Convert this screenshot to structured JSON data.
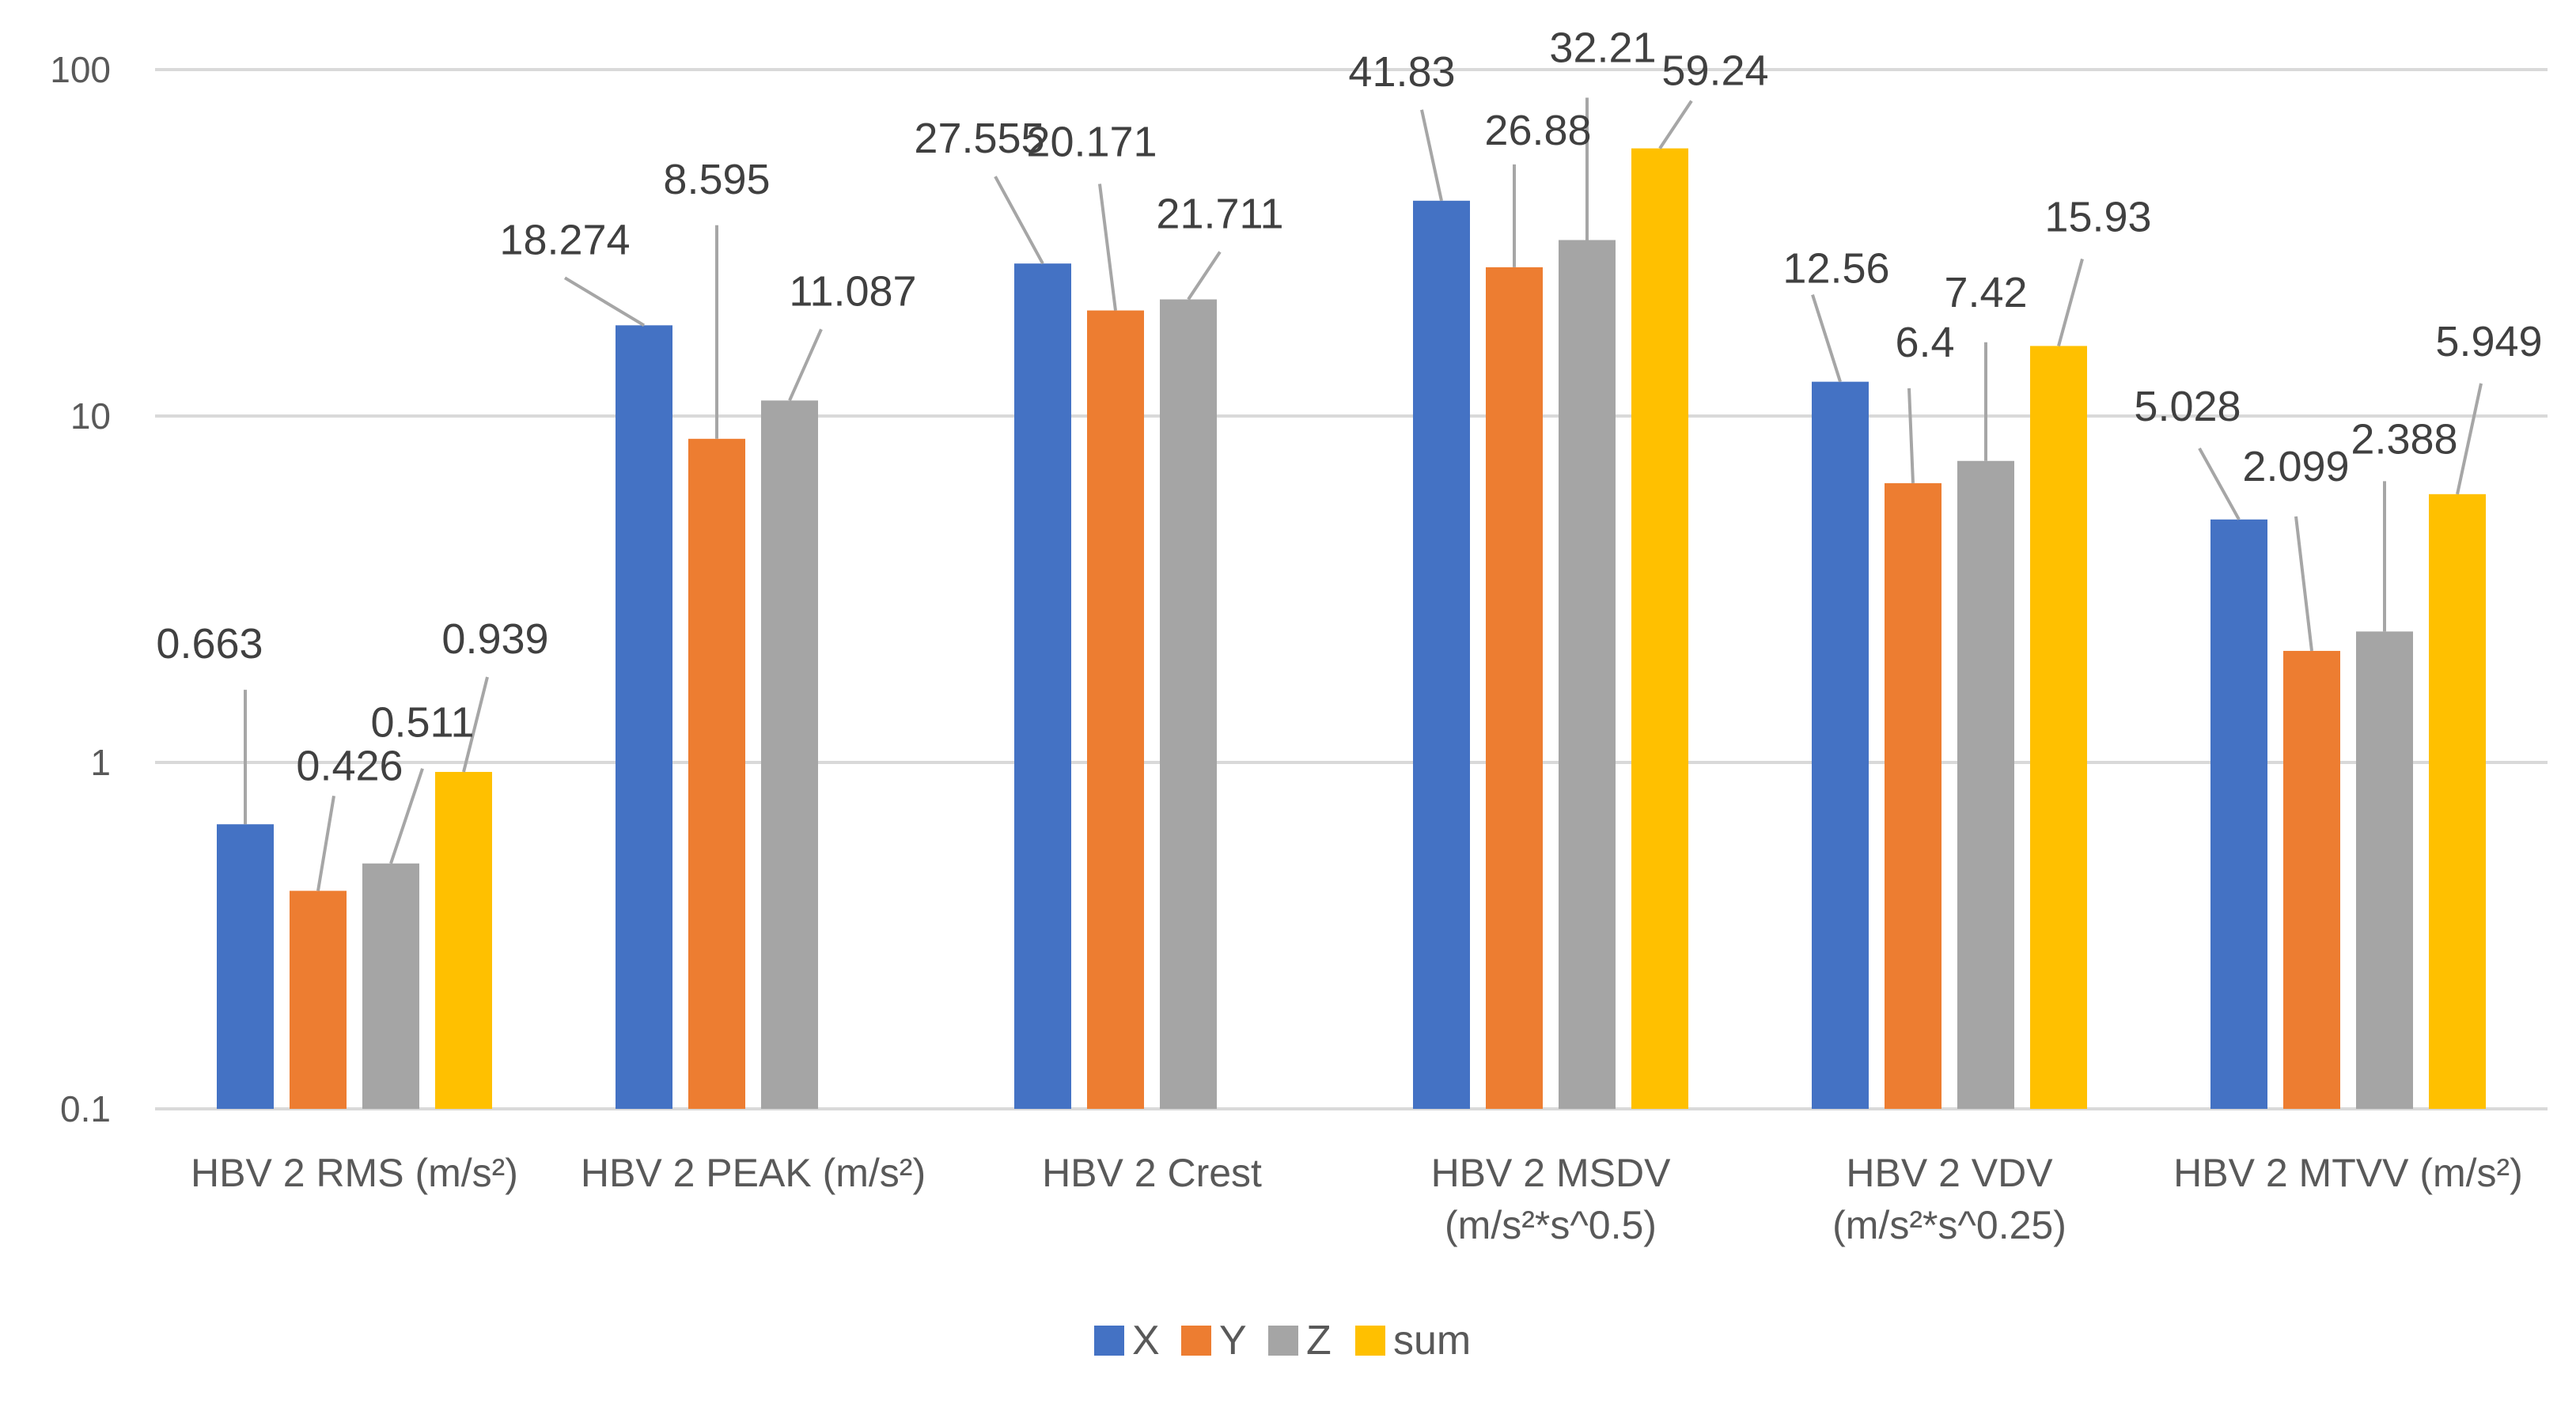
{
  "chart_data": {
    "type": "bar",
    "title": "",
    "xlabel": "",
    "ylabel": "",
    "y_scale": "log",
    "ylim": [
      0.1,
      100
    ],
    "y_ticks": [
      "0.1",
      "1",
      "10",
      "100"
    ],
    "grid": true,
    "legend_position": "bottom",
    "categories": [
      [
        "HBV 2 RMS (m/s²)"
      ],
      [
        "HBV 2 PEAK (m/s²)"
      ],
      [
        "HBV 2 Crest"
      ],
      [
        "HBV 2 MSDV",
        "(m/s²*s^0.5)"
      ],
      [
        "HBV 2 VDV",
        "(m/s²*s^0.25)"
      ],
      [
        "HBV 2 MTVV (m/s²)"
      ]
    ],
    "series": [
      {
        "name": "X",
        "color": "#4472c4",
        "values": [
          0.663,
          18.274,
          27.555,
          41.83,
          12.56,
          5.028
        ],
        "labels": [
          "0.663",
          "18.274",
          "27.555",
          "41.83",
          "12.56",
          "5.028"
        ]
      },
      {
        "name": "Y",
        "color": "#ed7d31",
        "values": [
          0.426,
          8.595,
          20.171,
          26.88,
          6.4,
          2.099
        ],
        "labels": [
          "0.426",
          "8.595",
          "20.171",
          "26.88",
          "6.4",
          "2.099"
        ]
      },
      {
        "name": "Z",
        "color": "#a5a5a5",
        "values": [
          0.511,
          11.087,
          21.711,
          32.21,
          7.42,
          2.388
        ],
        "labels": [
          "0.511",
          "11.087",
          "21.711",
          "32.21",
          "7.42",
          "2.388"
        ]
      },
      {
        "name": "sum",
        "color": "#ffc000",
        "values": [
          0.939,
          null,
          null,
          59.24,
          15.93,
          5.949
        ],
        "labels": [
          "0.939",
          null,
          null,
          "59.24",
          "15.93",
          "5.949"
        ]
      }
    ]
  }
}
